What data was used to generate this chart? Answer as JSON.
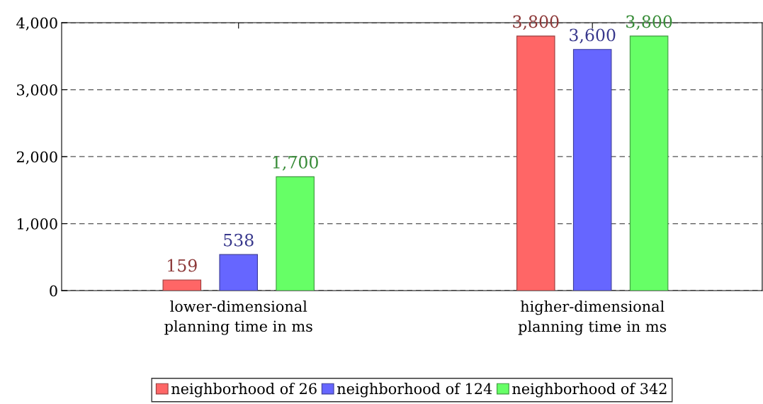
{
  "chart_data": {
    "type": "bar",
    "categories": [
      "lower-dimensional\nplanning time in ms",
      "higher-dimensional\nplanning time in ms"
    ],
    "series": [
      {
        "name": "neighborhood of 26",
        "color": "#ff6666",
        "values": [
          159,
          3800
        ],
        "value_labels": [
          "159",
          "3,800"
        ]
      },
      {
        "name": "neighborhood of 124",
        "color": "#6666ff",
        "values": [
          538,
          3600
        ],
        "value_labels": [
          "538",
          "3,600"
        ]
      },
      {
        "name": "neighborhood of 342",
        "color": "#66ff66",
        "values": [
          1700,
          3800
        ],
        "value_labels": [
          "1,700",
          "3,800"
        ]
      }
    ],
    "ylim": [
      0,
      4000
    ],
    "yticks": [
      0,
      {
        "value": 1000,
        "label": "1,000"
      },
      {
        "value": 2000,
        "label": "2,000"
      },
      {
        "value": 3000,
        "label": "3,000"
      },
      {
        "value": 4000,
        "label": "4,000"
      }
    ],
    "grid": "y",
    "legend": "bottom"
  }
}
